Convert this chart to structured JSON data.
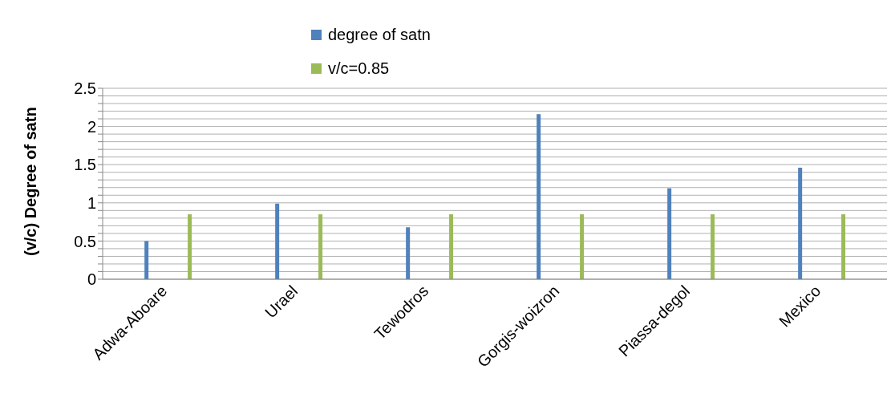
{
  "chart_data": {
    "type": "bar",
    "ylabel": "(v/c) Degree of satn",
    "categories": [
      "Adwa-Aboare",
      "Urael",
      "Tewodros",
      "Gorgis-woizron",
      "Piassa-degol",
      "Mexico"
    ],
    "series": [
      {
        "name": "degree of satn",
        "color": "#4f81bd",
        "values": [
          0.5,
          0.99,
          0.68,
          2.16,
          1.19,
          1.46
        ]
      },
      {
        "name": "v/c=0.85",
        "color": "#9bbb59",
        "values": [
          0.85,
          0.85,
          0.85,
          0.85,
          0.85,
          0.85
        ]
      }
    ],
    "ylim": [
      0,
      2.5
    ],
    "yticks": [
      0,
      {
        "value": 0.1,
        "label": null
      },
      {
        "value": 0.2,
        "label": null
      },
      {
        "value": 0.3,
        "label": null
      },
      {
        "value": 0.4,
        "label": null
      },
      0.5,
      {
        "value": 0.6,
        "label": null
      },
      {
        "value": 0.7,
        "label": null
      },
      {
        "value": 0.8,
        "label": null
      },
      {
        "value": 0.9,
        "label": null
      },
      1,
      {
        "value": 1.1,
        "label": null
      },
      {
        "value": 1.2,
        "label": null
      },
      {
        "value": 1.3,
        "label": null
      },
      {
        "value": 1.4,
        "label": null
      },
      1.5,
      {
        "value": 1.6,
        "label": null
      },
      {
        "value": 1.7,
        "label": null
      },
      {
        "value": 1.8,
        "label": null
      },
      {
        "value": 1.9,
        "label": null
      },
      2,
      {
        "value": 2.1,
        "label": null
      },
      {
        "value": 2.2,
        "label": null
      },
      {
        "value": 2.3,
        "label": null
      },
      {
        "value": 2.4,
        "label": null
      },
      2.5
    ],
    "grid": "y",
    "legend": "top"
  }
}
